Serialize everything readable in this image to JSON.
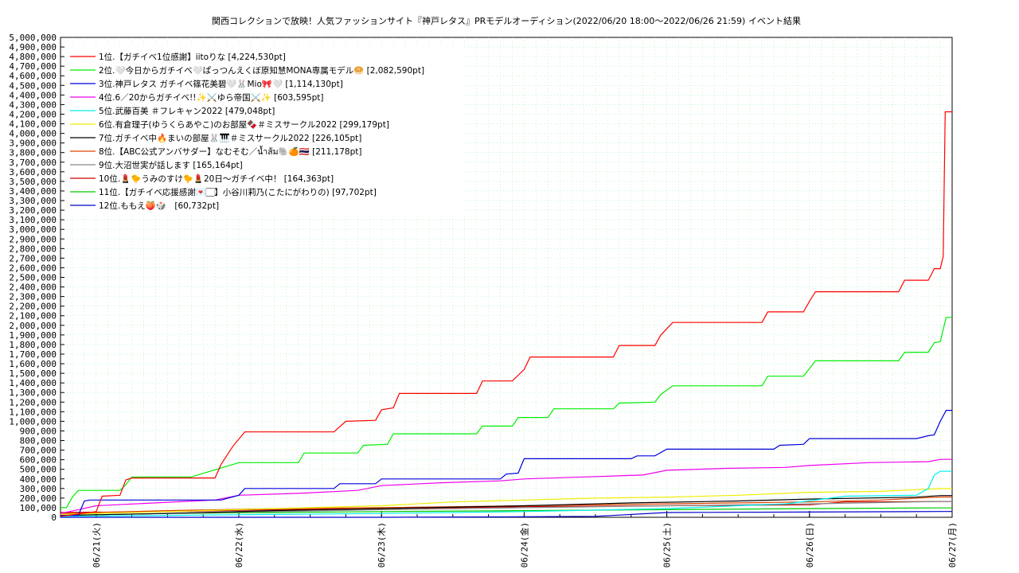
{
  "chart_data": {
    "type": "line",
    "title": "関西コレクションで放映！人気ファッションサイト『神戸レタス』PRモデルオーディション(2022/06/20 18:00〜2022/06/26 21:59)",
    "subtitle": "イベント結果",
    "x_tick_labels": [
      "06/21(火)",
      "06/22(水)",
      "06/23(木)",
      "06/24(金)",
      "06/25(土)",
      "06/26(日)",
      "06/27(月)"
    ],
    "xlim": [
      "2022-06-20 18:00",
      "2022-06-27 00:00"
    ],
    "ylim": [
      0,
      5000000
    ],
    "y_tick_labels": [
      "0",
      "100,000",
      "200,000",
      "300,000",
      "400,000",
      "500,000",
      "600,000",
      "700,000",
      "800,000",
      "900,000",
      "1,000,000",
      "1,100,000",
      "1,200,000",
      "1,300,000",
      "1,400,000",
      "1,500,000",
      "1,600,000",
      "1,700,000",
      "1,800,000",
      "1,900,000",
      "2,000,000",
      "2,100,000",
      "2,200,000",
      "2,300,000",
      "2,400,000",
      "2,500,000",
      "2,600,000",
      "2,700,000",
      "2,800,000",
      "2,900,000",
      "3,000,000",
      "3,100,000",
      "3,200,000",
      "3,300,000",
      "3,400,000",
      "3,500,000",
      "3,600,000",
      "3,700,000",
      "3,800,000",
      "3,900,000",
      "4,000,000",
      "4,100,000",
      "4,200,000",
      "4,300,000",
      "4,400,000",
      "4,500,000",
      "4,600,000",
      "4,700,000",
      "4,800,000",
      "4,900,000",
      "5,000,000"
    ],
    "grid": true,
    "legend_position": "top-left",
    "series": [
      {
        "name": "1位.【ガチイベ1位感謝】iitoりな [4,224,530pt]",
        "color": "#ff0000",
        "points": [
          [
            "2022-06-20 18:00",
            10000
          ],
          [
            "2022-06-21 00:00",
            60000
          ],
          [
            "2022-06-21 01:00",
            220000
          ],
          [
            "2022-06-21 04:00",
            230000
          ],
          [
            "2022-06-21 05:00",
            390000
          ],
          [
            "2022-06-21 06:00",
            410000
          ],
          [
            "2022-06-21 20:00",
            410000
          ],
          [
            "2022-06-21 21:00",
            550000
          ],
          [
            "2022-06-21 23:00",
            740000
          ],
          [
            "2022-06-22 01:00",
            890000
          ],
          [
            "2022-06-22 16:00",
            890000
          ],
          [
            "2022-06-22 18:00",
            1000000
          ],
          [
            "2022-06-22 23:00",
            1010000
          ],
          [
            "2022-06-23 00:00",
            1120000
          ],
          [
            "2022-06-23 02:00",
            1140000
          ],
          [
            "2022-06-23 03:00",
            1290000
          ],
          [
            "2022-06-23 16:00",
            1290000
          ],
          [
            "2022-06-23 17:00",
            1420000
          ],
          [
            "2022-06-23 22:00",
            1420000
          ],
          [
            "2022-06-24 00:00",
            1540000
          ],
          [
            "2022-06-24 01:00",
            1670000
          ],
          [
            "2022-06-24 15:00",
            1670000
          ],
          [
            "2022-06-24 16:00",
            1790000
          ],
          [
            "2022-06-24 22:00",
            1790000
          ],
          [
            "2022-06-24 23:00",
            1900000
          ],
          [
            "2022-06-25 01:00",
            2030000
          ],
          [
            "2022-06-25 16:00",
            2030000
          ],
          [
            "2022-06-25 17:00",
            2140000
          ],
          [
            "2022-06-25 23:00",
            2140000
          ],
          [
            "2022-06-26 00:00",
            2250000
          ],
          [
            "2022-06-26 01:00",
            2350000
          ],
          [
            "2022-06-26 15:00",
            2350000
          ],
          [
            "2022-06-26 16:00",
            2470000
          ],
          [
            "2022-06-26 20:00",
            2470000
          ],
          [
            "2022-06-26 21:00",
            2590000
          ],
          [
            "2022-06-26 22:00",
            2590000
          ],
          [
            "2022-06-26 22:30",
            2720000
          ],
          [
            "2022-06-26 22:50",
            4224530
          ],
          [
            "2022-06-27 00:00",
            4224530
          ]
        ]
      },
      {
        "name": "2位.🤍今日からガチイベ🤍ぱっつんえくぼ原知慧MONA専属モデル🥯 [2,082,590pt]",
        "color": "#00ee00",
        "points": [
          [
            "2022-06-20 18:00",
            100000
          ],
          [
            "2022-06-20 19:00",
            100000
          ],
          [
            "2022-06-20 20:00",
            210000
          ],
          [
            "2022-06-20 21:00",
            280000
          ],
          [
            "2022-06-21 04:00",
            280000
          ],
          [
            "2022-06-21 05:00",
            340000
          ],
          [
            "2022-06-21 06:00",
            420000
          ],
          [
            "2022-06-21 16:00",
            420000
          ],
          [
            "2022-06-22 00:00",
            570000
          ],
          [
            "2022-06-22 10:00",
            570000
          ],
          [
            "2022-06-22 11:00",
            670000
          ],
          [
            "2022-06-22 20:00",
            670000
          ],
          [
            "2022-06-22 21:00",
            750000
          ],
          [
            "2022-06-23 01:00",
            760000
          ],
          [
            "2022-06-23 02:00",
            870000
          ],
          [
            "2022-06-23 16:00",
            870000
          ],
          [
            "2022-06-23 17:00",
            950000
          ],
          [
            "2022-06-23 22:00",
            950000
          ],
          [
            "2022-06-23 23:00",
            1040000
          ],
          [
            "2022-06-24 04:00",
            1040000
          ],
          [
            "2022-06-24 05:00",
            1130000
          ],
          [
            "2022-06-24 15:00",
            1130000
          ],
          [
            "2022-06-24 16:00",
            1190000
          ],
          [
            "2022-06-24 22:00",
            1200000
          ],
          [
            "2022-06-24 23:00",
            1280000
          ],
          [
            "2022-06-25 01:00",
            1370000
          ],
          [
            "2022-06-25 16:00",
            1370000
          ],
          [
            "2022-06-25 17:00",
            1470000
          ],
          [
            "2022-06-25 23:00",
            1470000
          ],
          [
            "2022-06-26 00:00",
            1550000
          ],
          [
            "2022-06-26 01:00",
            1630000
          ],
          [
            "2022-06-26 15:00",
            1630000
          ],
          [
            "2022-06-26 16:00",
            1720000
          ],
          [
            "2022-06-26 20:00",
            1720000
          ],
          [
            "2022-06-26 21:00",
            1820000
          ],
          [
            "2022-06-26 22:00",
            1830000
          ],
          [
            "2022-06-26 23:00",
            2082590
          ],
          [
            "2022-06-27 00:00",
            2082590
          ]
        ]
      },
      {
        "name": "3位.神戸レタス ガチイベ篠花美碧🤍🐰Mio🎀🤍 [1,114,130pt]",
        "color": "#0000dd",
        "points": [
          [
            "2022-06-20 18:00",
            20000
          ],
          [
            "2022-06-20 21:00",
            20000
          ],
          [
            "2022-06-20 22:00",
            170000
          ],
          [
            "2022-06-20 23:00",
            180000
          ],
          [
            "2022-06-21 21:00",
            180000
          ],
          [
            "2022-06-22 00:00",
            230000
          ],
          [
            "2022-06-22 01:00",
            300000
          ],
          [
            "2022-06-22 16:00",
            300000
          ],
          [
            "2022-06-22 17:00",
            350000
          ],
          [
            "2022-06-22 23:00",
            350000
          ],
          [
            "2022-06-23 00:00",
            400000
          ],
          [
            "2022-06-23 20:00",
            400000
          ],
          [
            "2022-06-23 21:00",
            450000
          ],
          [
            "2022-06-23 23:00",
            460000
          ],
          [
            "2022-06-24 00:00",
            610000
          ],
          [
            "2022-06-24 18:00",
            610000
          ],
          [
            "2022-06-24 19:00",
            640000
          ],
          [
            "2022-06-24 22:00",
            640000
          ],
          [
            "2022-06-25 00:00",
            710000
          ],
          [
            "2022-06-25 18:00",
            710000
          ],
          [
            "2022-06-25 19:00",
            750000
          ],
          [
            "2022-06-25 23:00",
            760000
          ],
          [
            "2022-06-26 00:00",
            820000
          ],
          [
            "2022-06-26 18:00",
            820000
          ],
          [
            "2022-06-26 20:00",
            850000
          ],
          [
            "2022-06-26 21:00",
            860000
          ],
          [
            "2022-06-26 22:00",
            1000000
          ],
          [
            "2022-06-26 23:00",
            1114130
          ],
          [
            "2022-06-27 00:00",
            1114130
          ]
        ]
      },
      {
        "name": "4位.6／20からガチイベ!!✨⚔️ゆら帝国⚔️✨ [603,595pt]",
        "color": "#ee00ee",
        "points": [
          [
            "2022-06-20 18:00",
            40000
          ],
          [
            "2022-06-20 21:00",
            80000
          ],
          [
            "2022-06-21 00:00",
            120000
          ],
          [
            "2022-06-21 10:00",
            150000
          ],
          [
            "2022-06-21 20:00",
            180000
          ],
          [
            "2022-06-22 00:00",
            230000
          ],
          [
            "2022-06-22 10:00",
            250000
          ],
          [
            "2022-06-22 20:00",
            280000
          ],
          [
            "2022-06-23 00:00",
            330000
          ],
          [
            "2022-06-23 10:00",
            360000
          ],
          [
            "2022-06-23 20:00",
            380000
          ],
          [
            "2022-06-24 00:00",
            400000
          ],
          [
            "2022-06-24 10:00",
            420000
          ],
          [
            "2022-06-24 20:00",
            440000
          ],
          [
            "2022-06-25 00:00",
            490000
          ],
          [
            "2022-06-25 10:00",
            510000
          ],
          [
            "2022-06-25 20:00",
            520000
          ],
          [
            "2022-06-26 00:00",
            540000
          ],
          [
            "2022-06-26 10:00",
            570000
          ],
          [
            "2022-06-26 20:00",
            580000
          ],
          [
            "2022-06-26 22:00",
            603595
          ],
          [
            "2022-06-27 00:00",
            603595
          ]
        ]
      },
      {
        "name": "5位.武藤百美 ＃フレキャン2022 [479,048pt]",
        "color": "#00eeee",
        "points": [
          [
            "2022-06-20 18:00",
            10000
          ],
          [
            "2022-06-21 12:00",
            20000
          ],
          [
            "2022-06-22 06:00",
            30000
          ],
          [
            "2022-06-23 00:00",
            40000
          ],
          [
            "2022-06-24 00:00",
            60000
          ],
          [
            "2022-06-25 00:00",
            90000
          ],
          [
            "2022-06-25 20:00",
            140000
          ],
          [
            "2022-06-26 06:00",
            220000
          ],
          [
            "2022-06-26 18:00",
            230000
          ],
          [
            "2022-06-26 20:00",
            300000
          ],
          [
            "2022-06-26 21:00",
            440000
          ],
          [
            "2022-06-26 22:00",
            479048
          ],
          [
            "2022-06-27 00:00",
            479048
          ]
        ]
      },
      {
        "name": "6位.有倉理子(ゆうくらあやこ)のお部屋🍫＃ミスサークル2022 [299,179pt]",
        "color": "#eeee00",
        "points": [
          [
            "2022-06-20 18:00",
            30000
          ],
          [
            "2022-06-21 12:00",
            60000
          ],
          [
            "2022-06-22 06:00",
            90000
          ],
          [
            "2022-06-23 00:00",
            120000
          ],
          [
            "2022-06-23 12:00",
            160000
          ],
          [
            "2022-06-24 00:00",
            180000
          ],
          [
            "2022-06-24 12:00",
            200000
          ],
          [
            "2022-06-25 00:00",
            210000
          ],
          [
            "2022-06-25 12:00",
            230000
          ],
          [
            "2022-06-26 00:00",
            260000
          ],
          [
            "2022-06-26 12:00",
            270000
          ],
          [
            "2022-06-26 22:00",
            299179
          ],
          [
            "2022-06-27 00:00",
            299179
          ]
        ]
      },
      {
        "name": "7位.ガチイベ中🔥まいの部屋🐰🎹＃ミスサークル2022 [226,105pt]",
        "color": "#000000",
        "points": [
          [
            "2022-06-20 18:00",
            20000
          ],
          [
            "2022-06-21 12:00",
            40000
          ],
          [
            "2022-06-22 06:00",
            70000
          ],
          [
            "2022-06-23 00:00",
            90000
          ],
          [
            "2022-06-24 00:00",
            120000
          ],
          [
            "2022-06-24 18:00",
            150000
          ],
          [
            "2022-06-25 12:00",
            170000
          ],
          [
            "2022-06-26 00:00",
            190000
          ],
          [
            "2022-06-26 18:00",
            210000
          ],
          [
            "2022-06-26 22:00",
            226105
          ],
          [
            "2022-06-27 00:00",
            226105
          ]
        ]
      },
      {
        "name": "8位.【ABC公式アンバサダー】なむそむ／น้ำส้ม🐘🍊🇹🇭 [211,178pt]",
        "color": "#dd4400",
        "points": [
          [
            "2022-06-20 18:00",
            40000
          ],
          [
            "2022-06-21 12:00",
            70000
          ],
          [
            "2022-06-22 06:00",
            90000
          ],
          [
            "2022-06-23 00:00",
            100000
          ],
          [
            "2022-06-24 00:00",
            120000
          ],
          [
            "2022-06-25 00:00",
            140000
          ],
          [
            "2022-06-26 00:00",
            160000
          ],
          [
            "2022-06-26 12:00",
            180000
          ],
          [
            "2022-06-26 22:00",
            211178
          ],
          [
            "2022-06-27 00:00",
            211178
          ]
        ]
      },
      {
        "name": "9位.大沼世実が話します [165,164pt]",
        "color": "#888888",
        "points": [
          [
            "2022-06-20 18:00",
            20000
          ],
          [
            "2022-06-21 12:00",
            40000
          ],
          [
            "2022-06-22 06:00",
            60000
          ],
          [
            "2022-06-23 00:00",
            80000
          ],
          [
            "2022-06-24 00:00",
            100000
          ],
          [
            "2022-06-25 00:00",
            120000
          ],
          [
            "2022-06-26 00:00",
            140000
          ],
          [
            "2022-06-26 22:00",
            165164
          ],
          [
            "2022-06-27 00:00",
            165164
          ]
        ]
      },
      {
        "name": "10位.💄🐤うみのすけ🐤💄20日〜ガチイベ中！ [164,363pt]",
        "color": "#cc0000",
        "points": [
          [
            "2022-06-20 18:00",
            50000
          ],
          [
            "2022-06-21 12:00",
            60000
          ],
          [
            "2022-06-22 06:00",
            80000
          ],
          [
            "2022-06-23 00:00",
            90000
          ],
          [
            "2022-06-24 00:00",
            110000
          ],
          [
            "2022-06-25 00:00",
            120000
          ],
          [
            "2022-06-26 00:00",
            130000
          ],
          [
            "2022-06-26 06:00",
            160000
          ],
          [
            "2022-06-26 22:00",
            164363
          ],
          [
            "2022-06-27 00:00",
            164363
          ]
        ]
      },
      {
        "name": "11位.【ガチイベ応援感謝💌🏻】小谷川莉乃(こたにがわりの) [97,702pt]",
        "color": "#00cc00",
        "points": [
          [
            "2022-06-20 18:00",
            20000
          ],
          [
            "2022-06-21 12:00",
            40000
          ],
          [
            "2022-06-22 06:00",
            50000
          ],
          [
            "2022-06-23 00:00",
            60000
          ],
          [
            "2022-06-24 00:00",
            70000
          ],
          [
            "2022-06-25 00:00",
            80000
          ],
          [
            "2022-06-26 00:00",
            90000
          ],
          [
            "2022-06-26 22:00",
            97702
          ],
          [
            "2022-06-27 00:00",
            97702
          ]
        ]
      },
      {
        "name": "12位.ももえ🍑🎲　[60,732pt]",
        "color": "#0000cc",
        "points": [
          [
            "2022-06-20 18:00",
            0
          ],
          [
            "2022-06-23 00:00",
            0
          ],
          [
            "2022-06-24 00:00",
            5000
          ],
          [
            "2022-06-24 12:00",
            10000
          ],
          [
            "2022-06-25 00:00",
            50000
          ],
          [
            "2022-06-26 00:00",
            55000
          ],
          [
            "2022-06-26 22:00",
            60732
          ],
          [
            "2022-06-27 00:00",
            60732
          ]
        ]
      }
    ]
  }
}
